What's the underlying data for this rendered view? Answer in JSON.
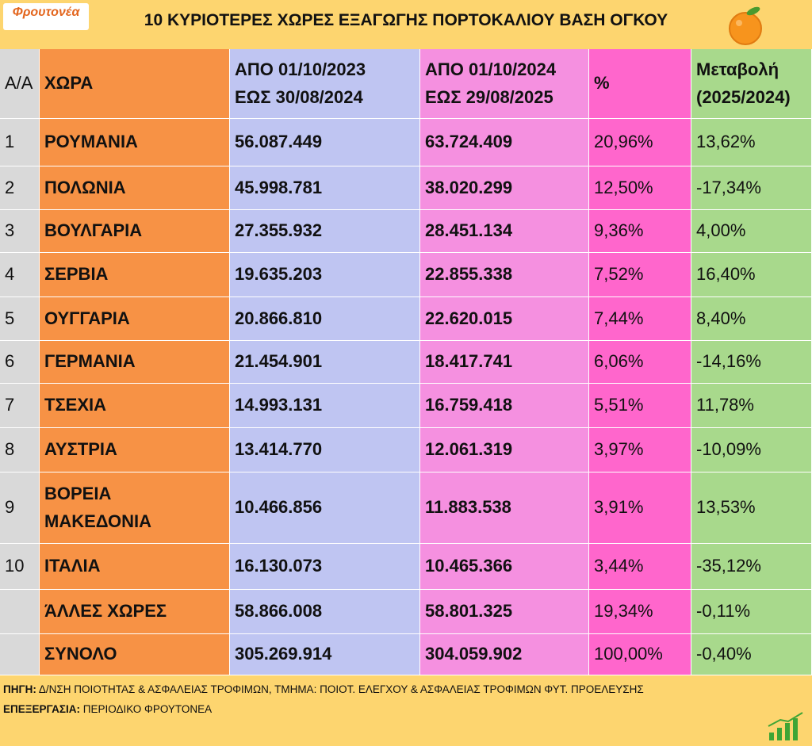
{
  "header": {
    "logo": "Φρουτονέα",
    "title": "10 ΚΥΡΙΟΤΕΡΕΣ ΧΩΡΕΣ ΕΞΑΓΩΓΗΣ ΠΟΡΤΟΚΑΛΙΟΥ ΒΑΣΗ ΟΓΚΟΥ"
  },
  "table": {
    "columns": [
      "Α/Α",
      "ΧΩΡΑ",
      "ΑΠΟ 01/10/2023\nΕΩΣ 30/08/2024",
      "ΑΠΟ 01/10/2024\nΕΩΣ  29/08/2025",
      "%",
      "Μεταβολή\n(2025/2024)"
    ],
    "rows": [
      [
        "1",
        "ΡΟΥΜΑΝΙΑ",
        "56.087.449",
        "63.724.409",
        "20,96%",
        "13,62%"
      ],
      [
        "2",
        "ΠΟΛΩΝΙΑ",
        "45.998.781",
        "38.020.299",
        "12,50%",
        "-17,34%"
      ],
      [
        "3",
        "ΒΟΥΛΓΑΡΙΑ",
        "27.355.932",
        "28.451.134",
        "9,36%",
        "4,00%"
      ],
      [
        "4",
        "ΣΕΡΒΙΑ",
        "19.635.203",
        "22.855.338",
        "7,52%",
        "16,40%"
      ],
      [
        "5",
        "ΟΥΓΓΑΡΙΑ",
        "20.866.810",
        "22.620.015",
        "7,44%",
        "8,40%"
      ],
      [
        "6",
        "ΓΕΡΜΑΝΙΑ",
        "21.454.901",
        "18.417.741",
        "6,06%",
        "-14,16%"
      ],
      [
        "7",
        "ΤΣΕΧΙΑ",
        "14.993.131",
        "16.759.418",
        "5,51%",
        "11,78%"
      ],
      [
        "8",
        "ΑΥΣΤΡΙΑ",
        "13.414.770",
        "12.061.319",
        "3,97%",
        "-10,09%"
      ],
      [
        "9",
        "ΒΟΡΕΙΑ\nΜΑΚΕΔΟΝΙΑ",
        "10.466.856",
        "11.883.538",
        "3,91%",
        "13,53%"
      ],
      [
        "10",
        "ΙΤΑΛΙΑ",
        "16.130.073",
        "10.465.366",
        "3,44%",
        "-35,12%"
      ],
      [
        null,
        "ΆΛΛΕΣ ΧΩΡΕΣ",
        "58.866.008",
        "58.801.325",
        "19,34%",
        "-0,11%"
      ],
      [
        null,
        "ΣΥΝΟΛΟ",
        "305.269.914",
        "304.059.902",
        "100,00%",
        "-0,40%"
      ]
    ]
  },
  "footer": {
    "source_label": "ΠΗΓΗ:",
    "source": "Δ/ΝΣΗ ΠΟΙΟΤΗΤΑΣ & ΑΣΦΑΛΕΙΑΣ ΤΡΟΦΙΜΩΝ, ΤΜΗΜΑ: ΠΟΙΟΤ. ΕΛΕΓΧΟΥ & ΑΣΦΑΛΕΙΑΣ ΤΡΟΦΙΜΩΝ ΦΥΤ. ΠΡΟΕΛΕΥΣΗΣ",
    "processing_label": "ΕΠΕΞΕΡΓΑΣΙΑ:",
    "processing": "ΠΕΡΙΟΔΙΚΟ ΦΡΟΥΤΟΝΕΑ"
  }
}
